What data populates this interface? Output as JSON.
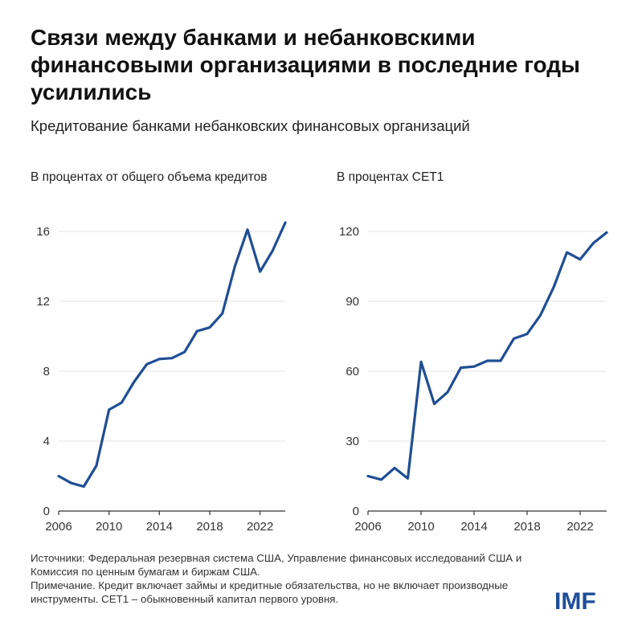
{
  "title": "Связи между банками и небанковскими финансовыми организациями в последние годы усилились",
  "subtitle": "Кредитование банками небанковских финансовых организаций",
  "notes": [
    "Источники: Федеральная резервная система США, Управление финансовых исследований США и Комиссия по ценным бумагам и биржам США.",
    "Примечание. Кредит включает займы и кредитные обязательства, но не включает производные инструменты. CET1 – обыкновенный капитал первого уровня."
  ],
  "logo": "IMF",
  "colors": {
    "line": "#1f4e94",
    "grid": "#e3e3e3",
    "logo": "#1e4d9a"
  },
  "chart_data": [
    {
      "type": "line",
      "title": "В процентах от общего объема кредитов",
      "x": [
        2006,
        2007,
        2008,
        2009,
        2010,
        2011,
        2012,
        2013,
        2014,
        2015,
        2016,
        2017,
        2018,
        2019,
        2020,
        2021,
        2022,
        2023,
        2024
      ],
      "values": [
        2.0,
        1.6,
        1.4,
        2.6,
        5.8,
        6.2,
        7.4,
        8.4,
        8.7,
        8.75,
        9.1,
        10.3,
        10.5,
        11.3,
        14.0,
        16.1,
        13.7,
        14.9,
        16.5
      ],
      "xlim": [
        2006,
        2024
      ],
      "ylim": [
        0,
        16
      ],
      "xticks": [
        "2006",
        "2010",
        "2014",
        "2018",
        "2022"
      ],
      "yticks": [
        "0",
        "4",
        "8",
        "12",
        "16"
      ],
      "grid": true
    },
    {
      "type": "line",
      "title": "В процентах CET1",
      "x": [
        2006,
        2007,
        2008,
        2009,
        2010,
        2011,
        2012,
        2013,
        2014,
        2015,
        2016,
        2017,
        2018,
        2019,
        2020,
        2021,
        2022,
        2023,
        2024
      ],
      "values": [
        15,
        13.5,
        18.5,
        14,
        64,
        46,
        51,
        61.5,
        62,
        64.5,
        64.5,
        74,
        76,
        84,
        96,
        111,
        108,
        115,
        119.5
      ],
      "xlim": [
        2006,
        2024
      ],
      "ylim": [
        0,
        120
      ],
      "xticks": [
        "2006",
        "2010",
        "2014",
        "2018",
        "2022"
      ],
      "yticks": [
        "0",
        "30",
        "60",
        "90",
        "120"
      ],
      "grid": true
    }
  ]
}
